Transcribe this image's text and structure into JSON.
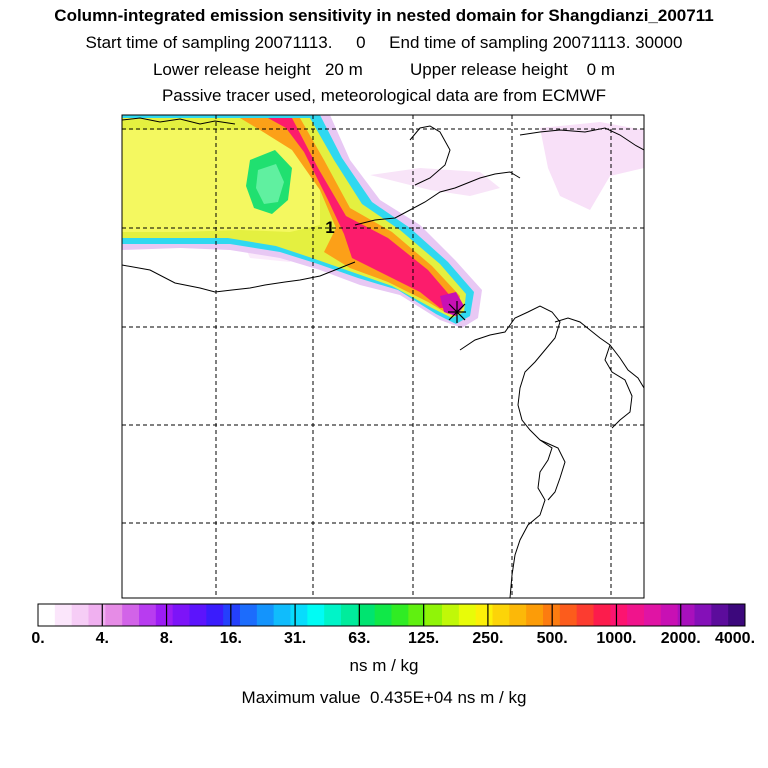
{
  "header": {
    "title": "Column-integrated emission sensitivity in nested domain for Shangdianzi_200711",
    "sampling_line": "Start time of sampling 20071113.     0     End time of sampling 20071113. 30000",
    "release_line": "Lower release height   20 m          Upper release height    0 m",
    "tracer_line": "Passive tracer used, meteorological data are from ECMWF"
  },
  "chart_data": {
    "type": "heatmap",
    "title": "Column-integrated emission sensitivity in nested domain for Shangdianzi_200711",
    "colorbar": {
      "tick_labels": [
        "0.",
        "4.",
        "8.",
        "16.",
        "31.",
        "63.",
        "125.",
        "250.",
        "500.",
        "1000.",
        "2000.",
        "4000."
      ],
      "unit": "ns m / kg",
      "colors": [
        "#ffffff",
        "#fbe6fb",
        "#f6cdf6",
        "#f0b0f0",
        "#e68ce6",
        "#d263e8",
        "#b83cf0",
        "#9c1cf4",
        "#7d14f8",
        "#5c14fc",
        "#3a1cfc",
        "#2440fc",
        "#1c6cfc",
        "#1494fc",
        "#10bcfc",
        "#08dcfc",
        "#00fcf4",
        "#00f4c8",
        "#00ec9c",
        "#00e470",
        "#10e848",
        "#30ec24",
        "#60f010",
        "#90f408",
        "#c0f808",
        "#e8fc08",
        "#fcf008",
        "#fcd408",
        "#fcb808",
        "#fc9c08",
        "#fc7c10",
        "#fc5c1c",
        "#fc3c30",
        "#fc1c4c",
        "#fc1470",
        "#f0148c",
        "#e014a4",
        "#c810b4",
        "#a810bc",
        "#8410b8",
        "#5c0c9c",
        "#3c087c"
      ]
    },
    "max_value_label": "Maximum value  0.435E+04 ns m / kg",
    "receptor_marker": "*",
    "contour_label": "1",
    "grid": true
  }
}
